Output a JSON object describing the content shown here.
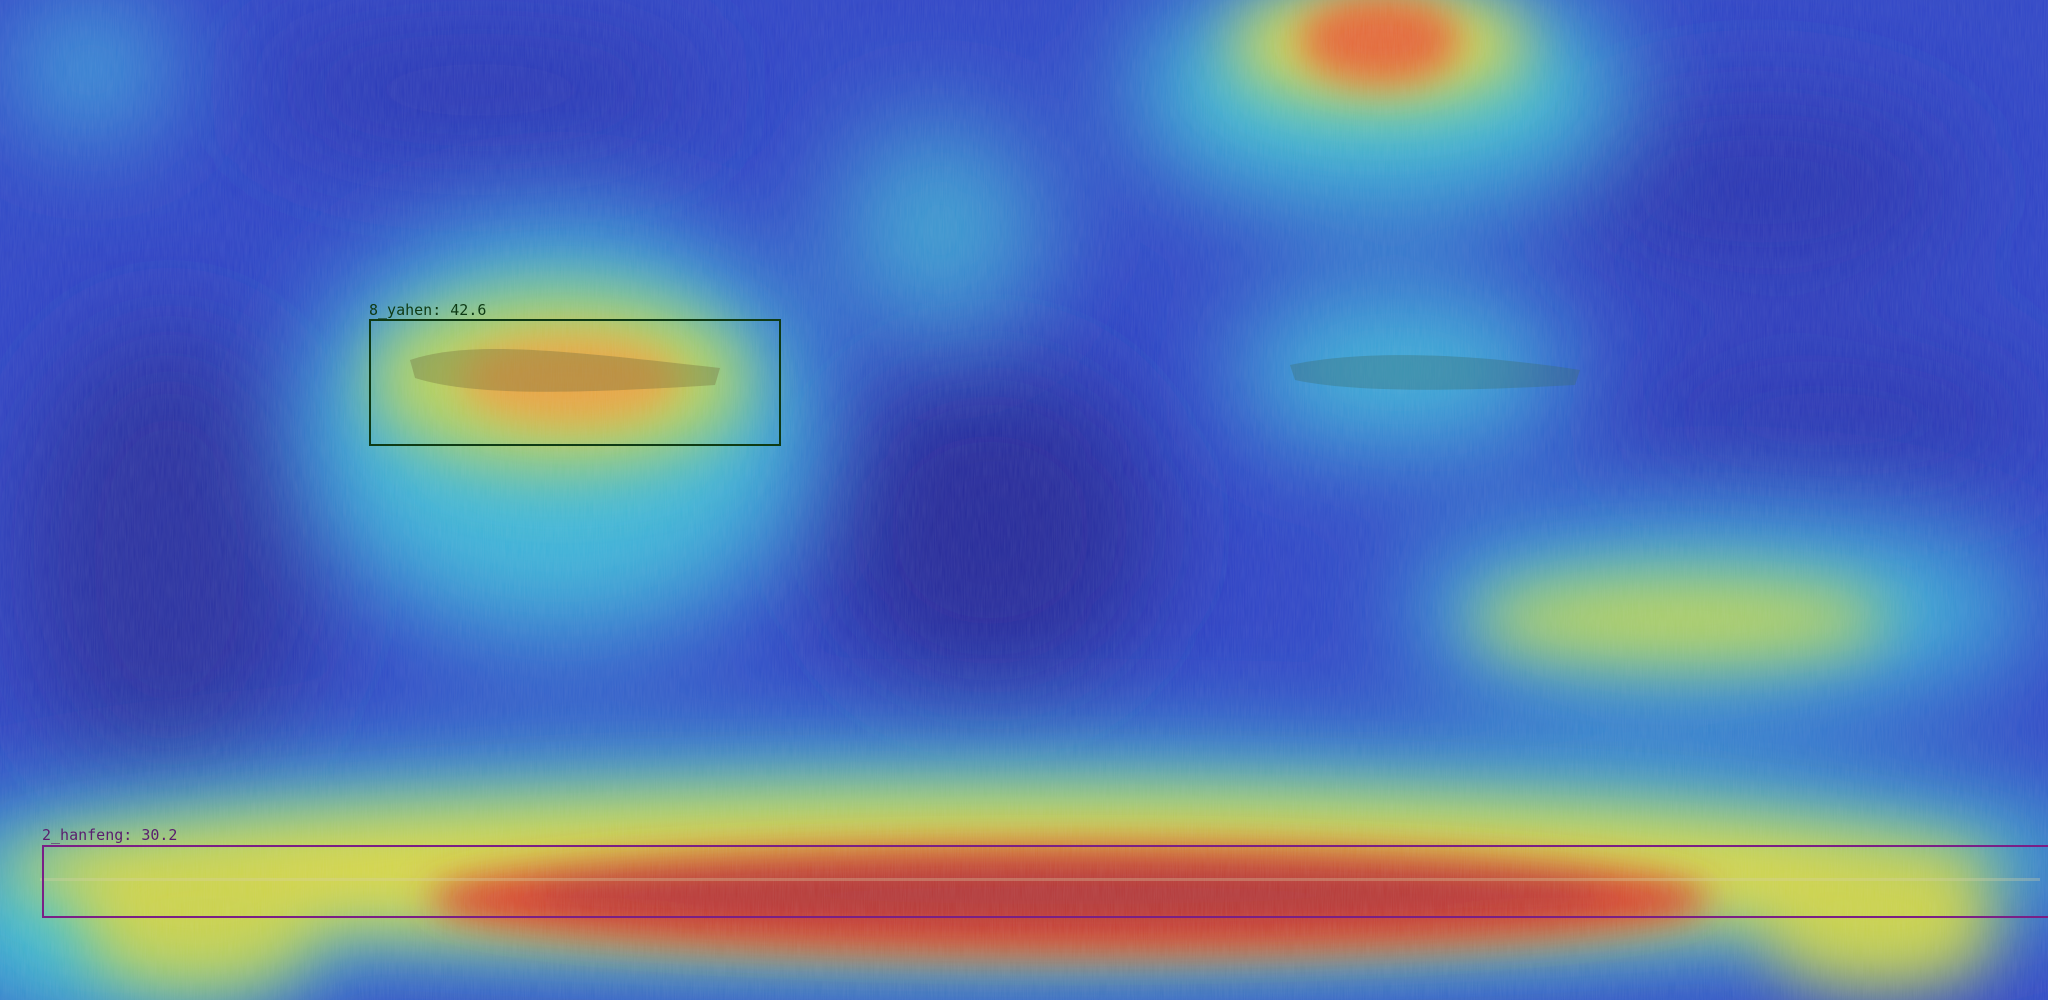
{
  "image": {
    "description_type": "defect-detection heatmap overlay",
    "colormap": "jet",
    "base_color": "#2f47c8"
  },
  "detections": [
    {
      "label": "8_yahen: 42.6",
      "box_color": "#0e3a14",
      "label_color": "#0e3a14"
    },
    {
      "label": "2_hanfeng: 30.2",
      "box_color": "#7a1f86",
      "label_color": "#5a1d6e"
    }
  ]
}
